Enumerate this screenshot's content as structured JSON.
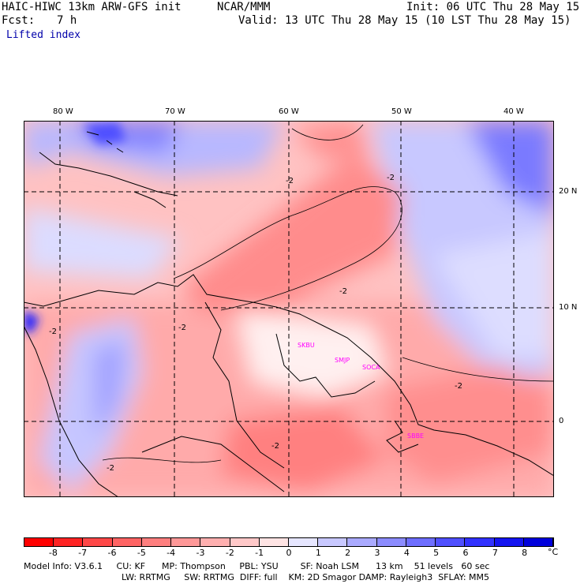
{
  "header": {
    "model": "HAIC-HIWC 13km ARW-GFS init",
    "center": "NCAR/MMM",
    "init": "Init: 06 UTC Thu 28 May 15",
    "fcst_label": "Fcst:",
    "fcst_value": "7 h",
    "valid": "Valid: 13 UTC Thu 28 May 15 (10 LST Thu 28 May 15)",
    "field": "Lifted index"
  },
  "map": {
    "lon_labels": [
      "80 W",
      "70 W",
      "60 W",
      "50 W",
      "40 W"
    ],
    "lat_labels": [
      "20 N",
      "10 N",
      "0"
    ],
    "contour_labels": [
      "-2",
      "-2",
      "-2",
      "-2",
      "-2",
      "-2",
      "-2",
      "-2"
    ],
    "cities": [
      "SKBU",
      "SMJP",
      "SOCA",
      "SBBE"
    ]
  },
  "colorbar": {
    "labels": [
      "-8",
      "-7",
      "-6",
      "-5",
      "-4",
      "-3",
      "-2",
      "-1",
      "0",
      "1",
      "2",
      "3",
      "4",
      "5",
      "6",
      "7",
      "8"
    ],
    "unit": "°C",
    "colors": [
      "#ff0000",
      "#ff2424",
      "#ff4848",
      "#ff6464",
      "#ff7f7f",
      "#ff9898",
      "#ffb0b0",
      "#ffc8c8",
      "#ffe4e4",
      "#e6e6ff",
      "#c8c8ff",
      "#aaaaff",
      "#8c8cff",
      "#6e6eff",
      "#5050ff",
      "#3232ff",
      "#1414f0",
      "#0000dc"
    ]
  },
  "footer": {
    "line1": "Model Info: V3.6.1     CU: KF      MP: Thompson     PBL: YSU        SF: Noah LSM      13 km    51 levels   60 sec",
    "line2": "LW: RRTMG     SW: RRTMG  DIFF: full    KM: 2D Smagor DAMP: Rayleigh3  SFLAY: MM5"
  }
}
